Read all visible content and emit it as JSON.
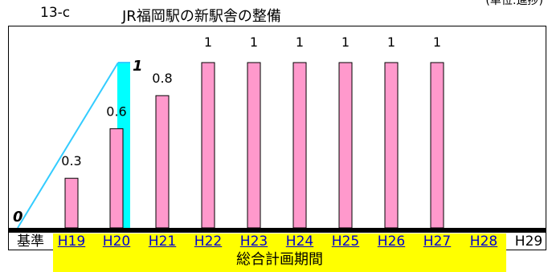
{
  "header": {
    "panel_id": "13-c",
    "title": "JR福岡駅の新駅舎の整備",
    "corner_note": "(単位:進捗)"
  },
  "period": {
    "label": "総合計画期間"
  },
  "colors": {
    "bar": "#ff99cc",
    "bar_stroke": "#000000",
    "target_bar": "#00ffff",
    "target_line": "#33ccff",
    "period_band": "#ffff00"
  },
  "chart_data": {
    "type": "bar",
    "title": "JR福岡駅の新駅舎の整備",
    "categories": [
      "基準",
      "H19",
      "H20",
      "H21",
      "H22",
      "H23",
      "H24",
      "H25",
      "H26",
      "H27",
      "H28",
      "H29"
    ],
    "series": [
      {
        "values": [
          null,
          0.3,
          0.6,
          0.8,
          1,
          1,
          1,
          1,
          1,
          1,
          null,
          null
        ],
        "data_labels": [
          "",
          "0.3",
          "0.6",
          "0.8",
          "1",
          "1",
          "1",
          "1",
          "1",
          "1",
          "",
          ""
        ]
      },
      {
        "values": [
          0,
          null,
          1,
          null,
          null,
          null,
          null,
          null,
          null,
          null,
          null,
          null
        ],
        "data_labels": [
          "0",
          "",
          "1",
          "",
          "",
          "",
          "",
          "",
          "",
          "",
          "",
          ""
        ]
      }
    ],
    "ylim": [
      0,
      1.1
    ],
    "grid": false,
    "legend": "none",
    "period_categories": [
      "H19",
      "H20",
      "H21",
      "H22",
      "H23",
      "H24",
      "H25",
      "H26",
      "H27",
      "H28"
    ]
  }
}
